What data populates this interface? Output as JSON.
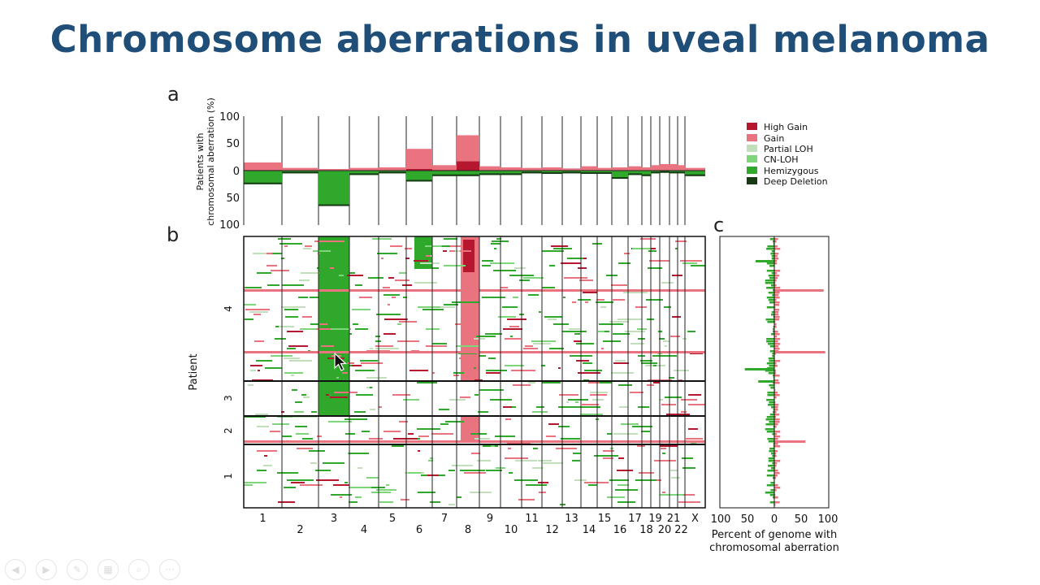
{
  "title": "Chromosome aberrations in uveal melanoma",
  "panels": {
    "a": "a",
    "b": "b",
    "c": "c"
  },
  "colors": {
    "high_gain": "#b5172f",
    "gain": "#e9747f",
    "partial_loh": "#c2dfbb",
    "cn_loh": "#7ed67a",
    "hemizygous": "#2fa82b",
    "deep_deletion": "#173a14",
    "title": "#1f4e79"
  },
  "chart_data": [
    {
      "type": "area",
      "panel": "a",
      "ylabel": [
        "Patients with",
        "chromosomal aberration (%)"
      ],
      "y_ticks_gain": [
        "100",
        "50",
        "0"
      ],
      "y_ticks_loss": [
        "50",
        "100"
      ],
      "ylim": [
        -100,
        100
      ],
      "legend": [
        "High Gain",
        "Gain",
        "Partial LOH",
        "CN-LOH",
        "Hemizygous",
        "Deep Deletion"
      ],
      "legend_position": "right",
      "chromosomes": [
        "1",
        "2",
        "3",
        "4",
        "5",
        "6",
        "7",
        "8",
        "9",
        "10",
        "11",
        "12",
        "13",
        "14",
        "15",
        "16",
        "17",
        "18",
        "19",
        "20",
        "21",
        "22",
        "X"
      ],
      "series": [
        {
          "name": "Gain",
          "values": [
            15,
            5,
            3,
            5,
            6,
            40,
            10,
            65,
            8,
            6,
            5,
            6,
            4,
            8,
            5,
            6,
            8,
            6,
            10,
            12,
            12,
            10,
            5
          ]
        },
        {
          "name": "High Gain",
          "values": [
            1,
            0,
            0,
            0,
            0,
            3,
            1,
            17,
            0,
            0,
            0,
            0,
            0,
            0,
            0,
            0,
            0,
            0,
            0,
            0,
            0,
            0,
            0
          ]
        },
        {
          "name": "Hemizygous",
          "values": [
            25,
            5,
            65,
            8,
            5,
            20,
            10,
            10,
            8,
            8,
            5,
            6,
            5,
            6,
            6,
            15,
            8,
            10,
            5,
            4,
            5,
            5,
            10
          ]
        }
      ]
    },
    {
      "type": "heatmap",
      "panel": "b",
      "ylabel": "Patient",
      "x_labels_top": [
        "1",
        "3",
        "5",
        "7",
        "9",
        "11",
        "13",
        "15",
        "17",
        "19",
        "21",
        "X"
      ],
      "x_labels_bottom": [
        "2",
        "4",
        "6",
        "8",
        "10",
        "12",
        "14",
        "16",
        "18",
        "20",
        "22"
      ],
      "groups": [
        "4",
        "3",
        "2",
        "1"
      ]
    },
    {
      "type": "bar",
      "panel": "c",
      "xlabel": [
        "Percent of genome with",
        "chromosomal aberration"
      ],
      "x_ticks": [
        "100",
        "50",
        "0",
        "50",
        "100"
      ],
      "xlim": [
        -100,
        100
      ]
    }
  ],
  "toolbar": {
    "icons": [
      "prev-icon",
      "next-icon",
      "pen-icon",
      "slides-icon",
      "zoom-icon",
      "more-icon"
    ],
    "more_label": "···"
  }
}
